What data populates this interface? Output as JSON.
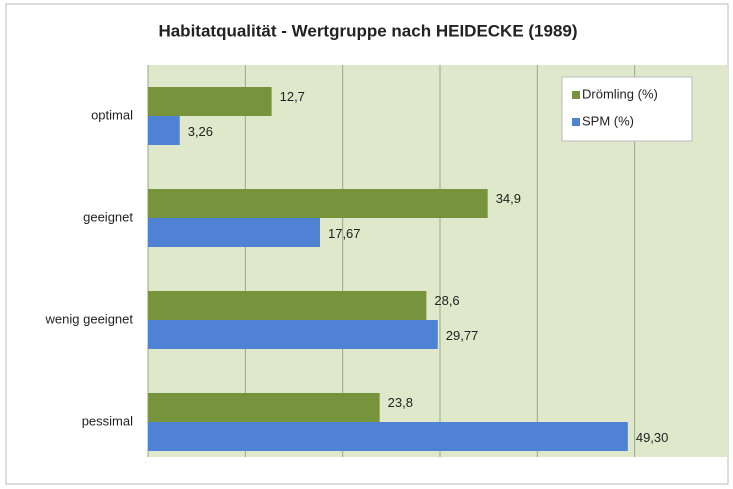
{
  "chart_data": {
    "type": "hbar",
    "title": "Habitatqualität - Wertgruppe nach HEIDECKE (1989)",
    "categories": [
      "optimal",
      "geeignet",
      "wenig geeignet",
      "pessimal"
    ],
    "series": [
      {
        "name": "Drömling (%)",
        "color": "#77933c",
        "values": [
          12.7,
          34.9,
          28.6,
          23.8
        ],
        "value_labels": [
          "12,7",
          "34,9",
          "28,6",
          "23,8"
        ]
      },
      {
        "name": "SPM (%)",
        "color": "#4f81d5",
        "values": [
          3.26,
          17.67,
          29.77,
          49.3
        ],
        "value_labels": [
          "3,26",
          "17,67",
          "29,77",
          "49,30"
        ]
      }
    ],
    "xlim": [
      0,
      60
    ],
    "xticks": [
      0,
      10,
      20,
      30,
      40,
      50,
      60
    ],
    "grid": true,
    "legend": "top-right"
  }
}
